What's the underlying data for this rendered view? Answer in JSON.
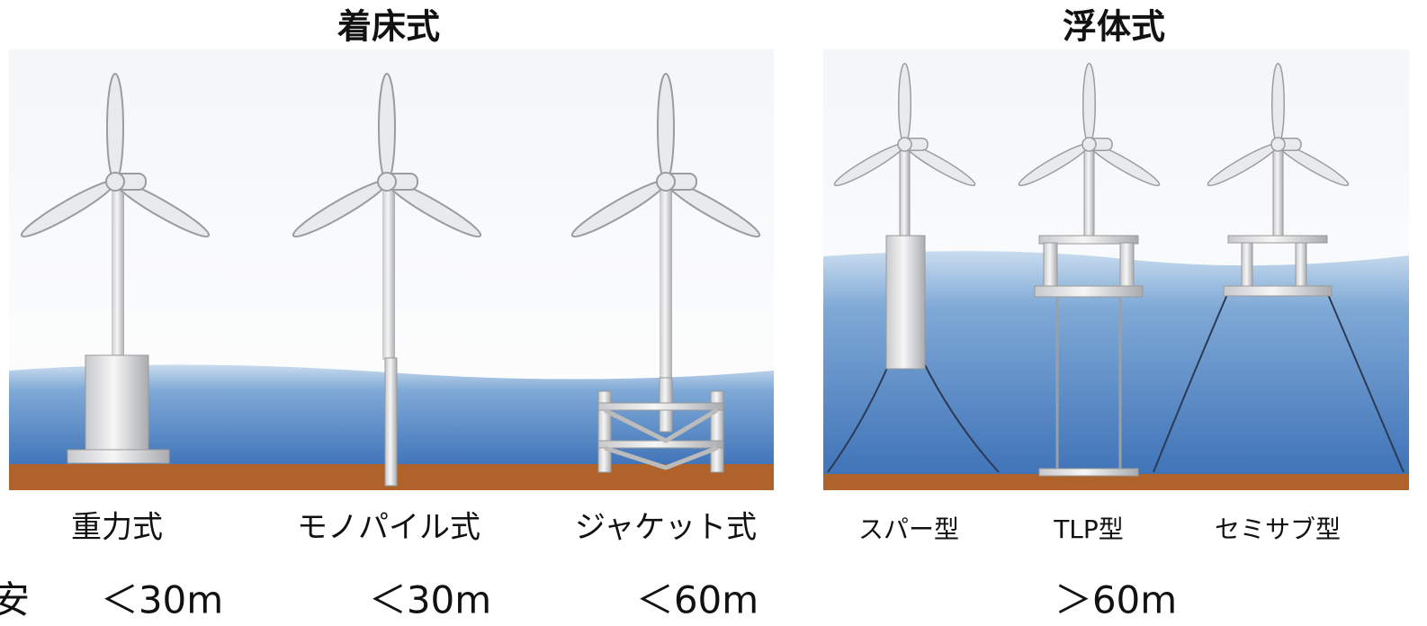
{
  "groups": [
    {
      "title": "着床式",
      "types": [
        {
          "label": "重力式"
        },
        {
          "label": "モノパイル式"
        },
        {
          "label": "ジャケット式"
        }
      ]
    },
    {
      "title": "浮体式",
      "types": [
        {
          "label": "スパー型"
        },
        {
          "label": "TLP型"
        },
        {
          "label": "セミサブ型"
        }
      ]
    }
  ],
  "depths": {
    "heading": "安",
    "items": [
      "＜30m",
      "＜30m",
      "＜60m",
      "＞60m"
    ]
  }
}
